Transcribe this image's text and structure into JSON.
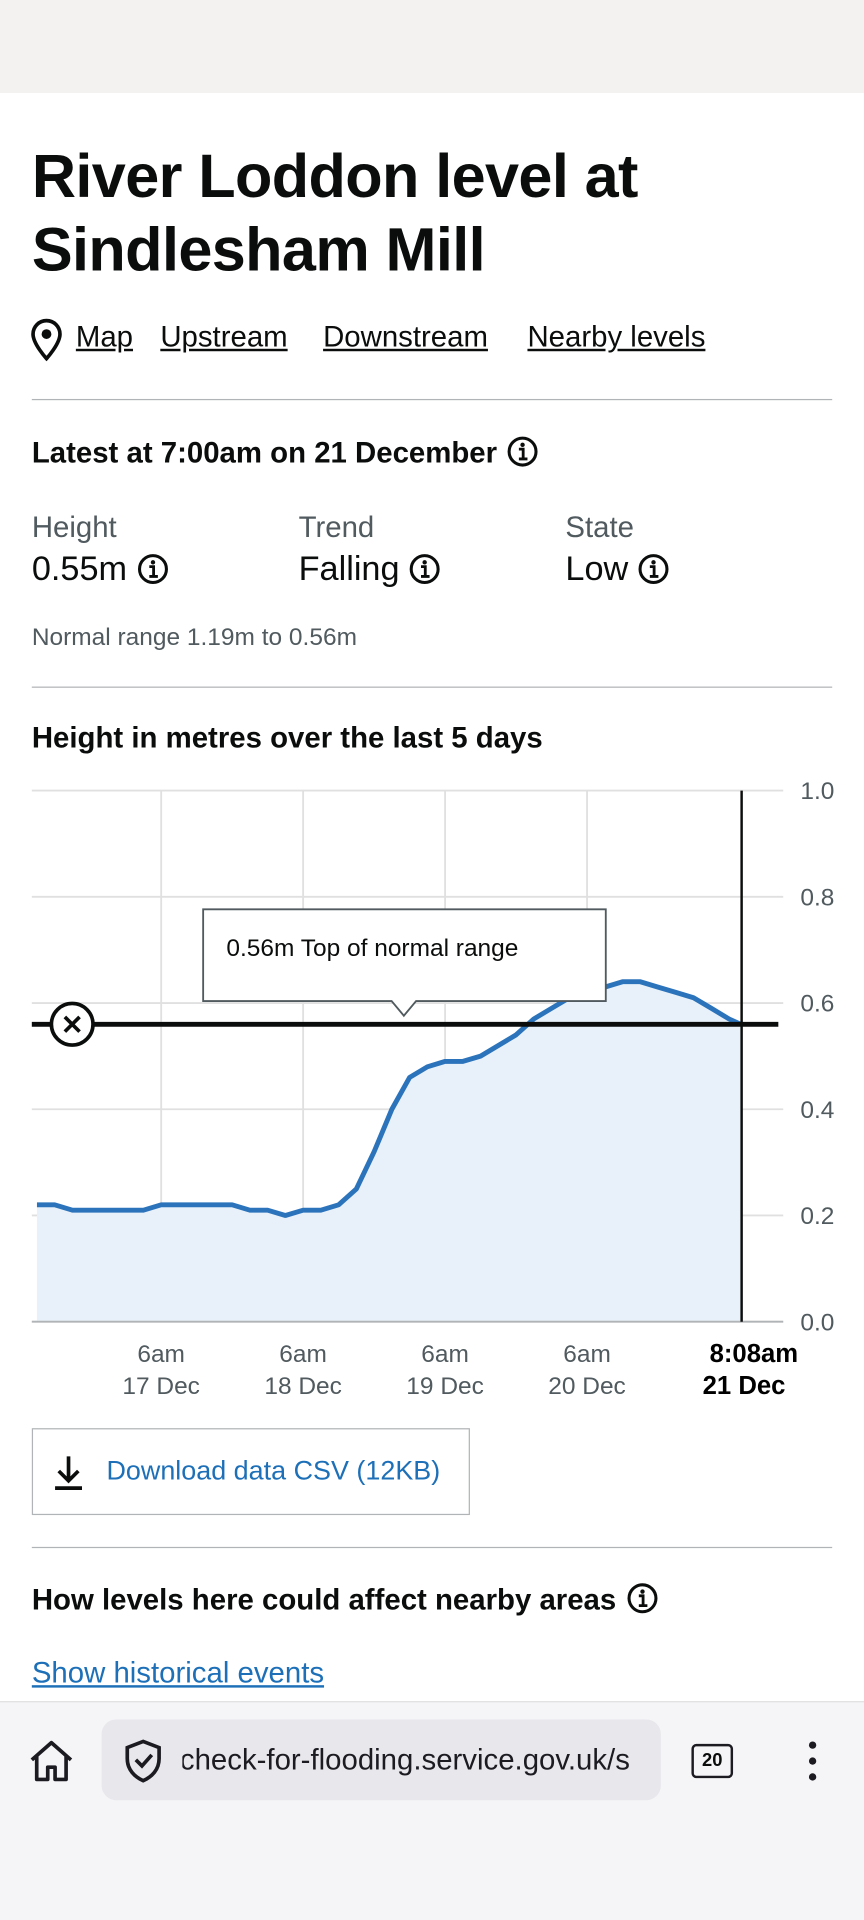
{
  "header": {
    "title": "River Loddon level at Sindlesham Mill"
  },
  "links": [
    "Map",
    "Upstream",
    "Downstream",
    "Nearby levels"
  ],
  "latest": {
    "heading": "Latest at 7:00am on 21 December",
    "items": [
      {
        "label": "Height",
        "value": "0.55m"
      },
      {
        "label": "Trend",
        "value": "Falling"
      },
      {
        "label": "State",
        "value": "Low"
      }
    ],
    "normal_range": "Normal range 1.19m to 0.56m"
  },
  "chart_data": {
    "type": "line",
    "title": "Height in metres over the last 5 days",
    "color": "#2b73bb",
    "x": [
      "16 Dec 9am",
      "16 Dec 12pm",
      "16 Dec 3pm",
      "16 Dec 6pm",
      "16 Dec 9pm",
      "17 Dec 12am",
      "17 Dec 3am",
      "17 Dec 6am",
      "17 Dec 9am",
      "17 Dec 12pm",
      "17 Dec 3pm",
      "17 Dec 6pm",
      "17 Dec 9pm",
      "18 Dec 12am",
      "18 Dec 3am",
      "18 Dec 6am",
      "18 Dec 9am",
      "18 Dec 12pm",
      "18 Dec 3pm",
      "18 Dec 6pm",
      "18 Dec 9pm",
      "19 Dec 12am",
      "19 Dec 3am",
      "19 Dec 6am",
      "19 Dec 9am",
      "19 Dec 12pm",
      "19 Dec 3pm",
      "19 Dec 6pm",
      "19 Dec 9pm",
      "20 Dec 12am",
      "20 Dec 3am",
      "20 Dec 6am",
      "20 Dec 9am",
      "20 Dec 12pm",
      "20 Dec 3pm",
      "20 Dec 6pm",
      "20 Dec 9pm",
      "21 Dec 12am",
      "21 Dec 3am",
      "21 Dec 6am",
      "21 Dec 8am"
    ],
    "values": [
      0.22,
      0.22,
      0.21,
      0.21,
      0.21,
      0.21,
      0.21,
      0.22,
      0.22,
      0.22,
      0.22,
      0.22,
      0.21,
      0.21,
      0.2,
      0.21,
      0.21,
      0.22,
      0.25,
      0.32,
      0.4,
      0.46,
      0.48,
      0.49,
      0.49,
      0.5,
      0.52,
      0.54,
      0.57,
      0.59,
      0.61,
      0.62,
      0.63,
      0.64,
      0.64,
      0.63,
      0.62,
      0.61,
      0.59,
      0.57,
      0.56
    ],
    "xlim": [
      "16 Dec 8:08am",
      "21 Dec 8:08am"
    ],
    "xticks": [
      {
        "value": "17 Dec 6am",
        "label": [
          "6am",
          "17 Dec"
        ]
      },
      {
        "value": "18 Dec 6am",
        "label": [
          "6am",
          "18 Dec"
        ]
      },
      {
        "value": "19 Dec 6am",
        "label": [
          "6am",
          "19 Dec"
        ]
      },
      {
        "value": "20 Dec 6am",
        "label": [
          "6am",
          "20 Dec"
        ]
      }
    ],
    "now": {
      "value": "21 Dec 8:08am",
      "label": [
        "8:08am",
        "21 Dec"
      ]
    },
    "ylim": [
      0,
      1
    ],
    "yticks": [
      {
        "value": 0,
        "label": "0.0"
      },
      0.2,
      0.4,
      0.6,
      0.8,
      {
        "value": 1,
        "label": "1.0"
      }
    ],
    "grid": true,
    "threshold": {
      "value": 0.56,
      "label": "0.56m Top of normal range"
    }
  },
  "download": "Download data CSV (12KB)",
  "impact": {
    "heading": "How levels here could affect nearby areas",
    "link": "Show historical events"
  },
  "browser": {
    "url": "check-for-flooding.service.gov.uk/s",
    "tabs": "20"
  }
}
